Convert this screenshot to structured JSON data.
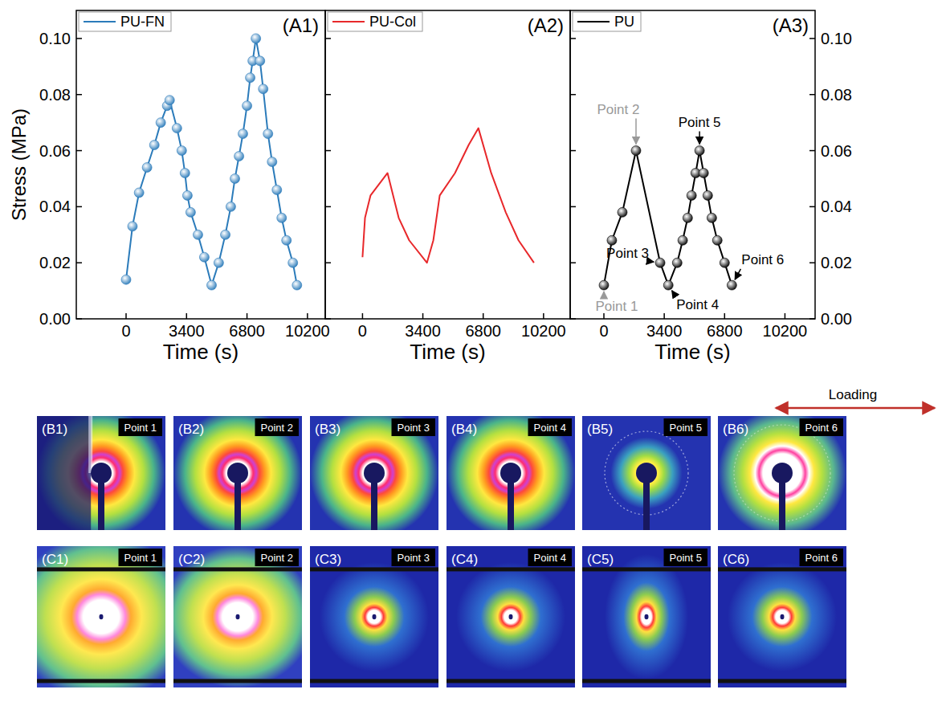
{
  "chart_data": [
    {
      "type": "line",
      "title": "(A1)",
      "x_label": "Time (s)",
      "y_label": "Stress (MPa)",
      "x": [
        0,
        360,
        730,
        1180,
        1590,
        1950,
        2310,
        2450,
        2860,
        3130,
        3310,
        3450,
        3630,
        4040,
        4400,
        4810,
        5210,
        5580,
        5890,
        6120,
        6350,
        6570,
        6800,
        6980,
        7120,
        7300,
        7530,
        7710,
        7980,
        8210,
        8480,
        8750,
        9020,
        9380,
        9610
      ],
      "series": [
        {
          "name": "PU-FN",
          "color": "#2b7bba",
          "marker": "circle",
          "values": [
            0.014,
            0.033,
            0.045,
            0.054,
            0.062,
            0.07,
            0.076,
            0.078,
            0.068,
            0.06,
            0.052,
            0.044,
            0.038,
            0.03,
            0.022,
            0.012,
            0.02,
            0.03,
            0.04,
            0.05,
            0.058,
            0.066,
            0.076,
            0.086,
            0.092,
            0.1,
            0.092,
            0.082,
            0.066,
            0.056,
            0.046,
            0.036,
            0.028,
            0.02,
            0.012
          ]
        }
      ],
      "xlim": [
        -2800,
        11200
      ],
      "ylim": [
        0,
        0.11
      ],
      "xticks": [
        0,
        3400,
        6800,
        10200
      ],
      "yticks": [
        {
          "value": 0,
          "label": "0.00"
        },
        {
          "value": 0.02,
          "label": "0.02"
        },
        {
          "value": 0.04,
          "label": "0.04"
        },
        {
          "value": 0.06,
          "label": "0.06"
        },
        {
          "value": 0.08,
          "label": "0.08"
        },
        {
          "value": 0.1,
          "label": "0.10"
        }
      ],
      "legend": "top-left"
    },
    {
      "type": "line",
      "title": "(A2)",
      "x_label": "Time (s)",
      "x": [
        0,
        140,
        450,
        1410,
        2040,
        2630,
        3630,
        3990,
        4350,
        5210,
        5980,
        6530,
        7250,
        8070,
        8790,
        9660
      ],
      "series": [
        {
          "name": "PU-Col",
          "color": "#e8282b",
          "marker": "none",
          "values": [
            0.022,
            0.036,
            0.044,
            0.052,
            0.036,
            0.028,
            0.02,
            0.028,
            0.044,
            0.052,
            0.062,
            0.068,
            0.052,
            0.038,
            0.028,
            0.02
          ]
        }
      ],
      "xlim": [
        -2100,
        11700
      ],
      "ylim": [
        0,
        0.11
      ],
      "xticks": [
        0,
        3400,
        6800,
        10200
      ],
      "yticks": [
        {
          "value": 0,
          "label": "0.00"
        },
        {
          "value": 0.02,
          "label": "0.02"
        },
        {
          "value": 0.04,
          "label": "0.04"
        },
        {
          "value": 0.06,
          "label": "0.06"
        },
        {
          "value": 0.08,
          "label": "0.08"
        },
        {
          "value": 0.1,
          "label": "0.10"
        }
      ],
      "tick_labels": "x",
      "legend": "top-left"
    },
    {
      "type": "line",
      "title": "(A3)",
      "x_label": "Time (s)",
      "x": [
        0,
        450,
        1040,
        1810,
        3170,
        3630,
        4130,
        4440,
        4720,
        4940,
        5170,
        5390,
        5620,
        5850,
        6080,
        6390,
        6800,
        7210
      ],
      "series": [
        {
          "name": "PU",
          "color": "#000000",
          "marker": "circle",
          "values": [
            0.012,
            0.028,
            0.038,
            0.06,
            0.02,
            0.012,
            0.02,
            0.028,
            0.036,
            0.044,
            0.052,
            0.06,
            0.052,
            0.044,
            0.036,
            0.028,
            0.02,
            0.012
          ]
        }
      ],
      "xlim": [
        -1900,
        11900
      ],
      "ylim": [
        0,
        0.11
      ],
      "xticks": [
        0,
        3400,
        6800,
        10200
      ],
      "yticks": [
        {
          "value": 0,
          "label": "0.00"
        },
        {
          "value": 0.02,
          "label": "0.02"
        },
        {
          "value": 0.04,
          "label": "0.04"
        },
        {
          "value": 0.06,
          "label": "0.06"
        },
        {
          "value": 0.08,
          "label": "0.08"
        },
        {
          "value": 0.1,
          "label": "0.10"
        }
      ],
      "y2lim": [
        0,
        0.11
      ],
      "y2ticks": [
        {
          "value": 0,
          "label": "0.00"
        },
        {
          "value": 0.02,
          "label": "0.02"
        },
        {
          "value": 0.04,
          "label": "0.04"
        },
        {
          "value": 0.06,
          "label": "0.06"
        },
        {
          "value": 0.08,
          "label": "0.08"
        },
        {
          "value": 0.1,
          "label": "0.10"
        }
      ],
      "tick_labels": "x",
      "legend": "top-left",
      "annotations": [
        {
          "text": "Point 1",
          "x": 0,
          "y": 0.012,
          "color": "#999999"
        },
        {
          "text": "Point 2",
          "x": 1810,
          "y": 0.06,
          "color": "#999999"
        },
        {
          "text": "Point 3",
          "x": 3170,
          "y": 0.02,
          "color": "#000000"
        },
        {
          "text": "Point 4",
          "x": 3630,
          "y": 0.012,
          "color": "#000000"
        },
        {
          "text": "Point 5",
          "x": 5390,
          "y": 0.06,
          "color": "#000000"
        },
        {
          "text": "Point 6",
          "x": 7210,
          "y": 0.012,
          "color": "#000000"
        }
      ]
    }
  ],
  "images": {
    "loading": "Loading",
    "rows": [
      {
        "panels": [
          {
            "label": "(B1)",
            "point": "Point 1"
          },
          {
            "label": "(B2)",
            "point": "Point 2"
          },
          {
            "label": "(B3)",
            "point": "Point 3"
          },
          {
            "label": "(B4)",
            "point": "Point 4"
          },
          {
            "label": "(B5)",
            "point": "Point 5"
          },
          {
            "label": "(B6)",
            "point": "Point 6"
          }
        ]
      },
      {
        "panels": [
          {
            "label": "(C1)",
            "point": "Point 1"
          },
          {
            "label": "(C2)",
            "point": "Point 2"
          },
          {
            "label": "(C3)",
            "point": "Point 3"
          },
          {
            "label": "(C4)",
            "point": "Point 4"
          },
          {
            "label": "(C5)",
            "point": "Point 5"
          },
          {
            "label": "(C6)",
            "point": "Point 6"
          }
        ]
      }
    ]
  }
}
